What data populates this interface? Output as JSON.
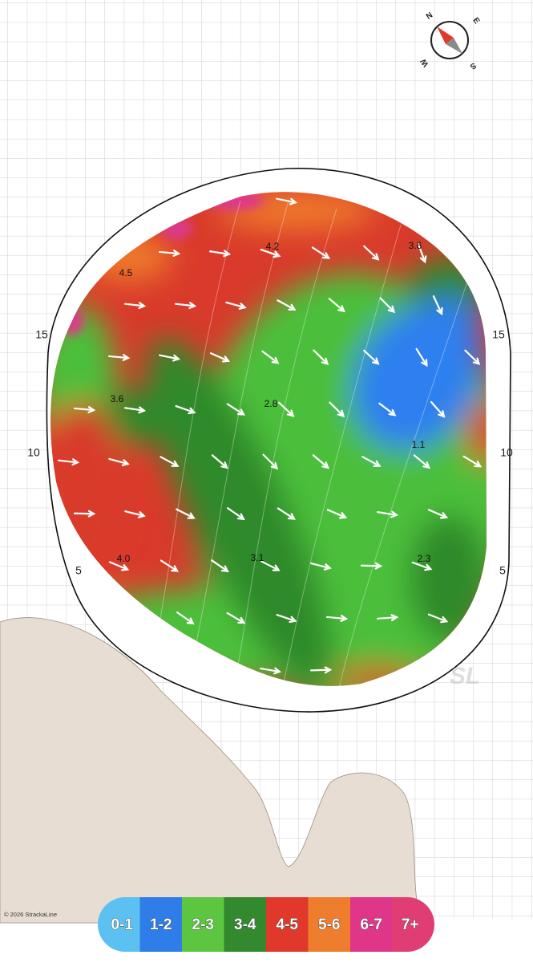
{
  "compass": {
    "n": "N",
    "e": "E",
    "s": "S",
    "w": "W"
  },
  "grid_labels": {
    "left": [
      "15",
      "10",
      "5"
    ],
    "right": [
      "15",
      "10",
      "5"
    ]
  },
  "slope_labels": [
    "4.2",
    "3.6",
    "4.5",
    "3.6",
    "2.8",
    "1.1",
    "4.0",
    "3.1",
    "2.3"
  ],
  "watermark": "SL",
  "copyright": "© 2026 StrackaLine",
  "legend": [
    {
      "label": "0-1",
      "color": "#5cc1f0"
    },
    {
      "label": "1-2",
      "color": "#2f7de8"
    },
    {
      "label": "2-3",
      "color": "#5cc641"
    },
    {
      "label": "3-4",
      "color": "#338a2e"
    },
    {
      "label": "4-5",
      "color": "#e0392c"
    },
    {
      "label": "5-6",
      "color": "#ef7d2e"
    },
    {
      "label": "6-7",
      "color": "#e0368a"
    },
    {
      "label": "7+",
      "color": "#e03d75"
    }
  ]
}
